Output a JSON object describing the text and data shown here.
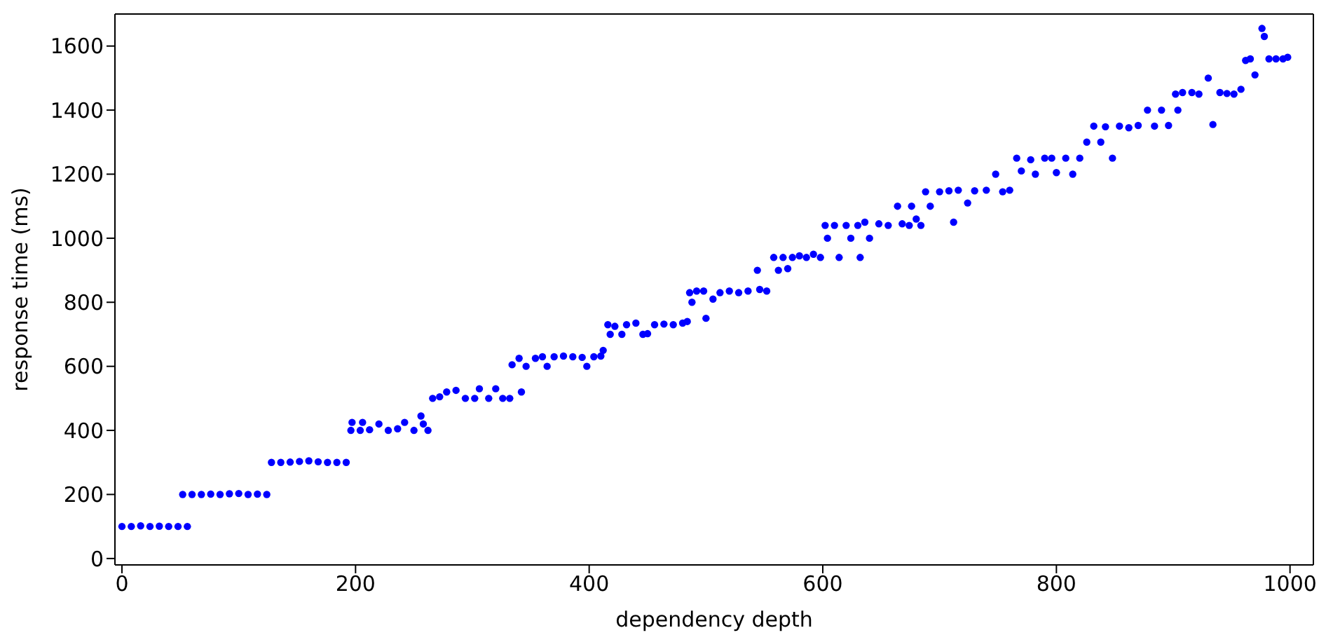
{
  "chart_data": {
    "type": "scatter",
    "xlabel": "dependency depth",
    "ylabel": "response time (ms)",
    "xlim": [
      -6,
      1020
    ],
    "ylim": [
      -20,
      1700
    ],
    "xticks": [
      0,
      200,
      400,
      600,
      800,
      1000
    ],
    "yticks": [
      0,
      200,
      400,
      600,
      800,
      1000,
      1200,
      1400,
      1600
    ],
    "grid": false,
    "legend": false,
    "marker": "circle",
    "series": [
      {
        "color": "#0000ff",
        "x": [
          0,
          8,
          16,
          24,
          32,
          40,
          48,
          52,
          56,
          60,
          68,
          76,
          84,
          92,
          100,
          108,
          116,
          124,
          128,
          136,
          144,
          152,
          160,
          168,
          176,
          184,
          192,
          196,
          197,
          204,
          206,
          212,
          220,
          228,
          236,
          242,
          250,
          256,
          258,
          262,
          266,
          272,
          278,
          286,
          294,
          302,
          306,
          314,
          320,
          326,
          332,
          334,
          340,
          342,
          346,
          354,
          360,
          364,
          370,
          378,
          386,
          394,
          398,
          404,
          410,
          412,
          416,
          418,
          422,
          428,
          432,
          440,
          446,
          450,
          456,
          464,
          472,
          480,
          484,
          486,
          488,
          492,
          498,
          500,
          506,
          512,
          520,
          528,
          536,
          544,
          546,
          552,
          558,
          562,
          566,
          570,
          574,
          580,
          586,
          592,
          598,
          602,
          604,
          610,
          614,
          620,
          624,
          630,
          632,
          636,
          640,
          648,
          656,
          664,
          668,
          674,
          676,
          680,
          684,
          688,
          692,
          700,
          708,
          712,
          716,
          724,
          730,
          740,
          748,
          754,
          760,
          766,
          770,
          778,
          782,
          790,
          796,
          800,
          808,
          814,
          820,
          826,
          832,
          838,
          842,
          848,
          854,
          862,
          870,
          878,
          884,
          890,
          896,
          902,
          904,
          908,
          916,
          922,
          930,
          934,
          940,
          946,
          952,
          958,
          962,
          966,
          970,
          976,
          978,
          982,
          988,
          994,
          998
        ],
        "values": [
          100,
          100,
          102,
          100,
          101,
          100,
          100,
          200,
          100,
          200,
          200,
          201,
          200,
          202,
          203,
          200,
          201,
          200,
          300,
          300,
          301,
          303,
          305,
          302,
          300,
          300,
          300,
          400,
          425,
          400,
          425,
          402,
          420,
          400,
          405,
          425,
          400,
          445,
          420,
          400,
          500,
          505,
          520,
          525,
          500,
          500,
          530,
          500,
          530,
          500,
          500,
          605,
          625,
          520,
          600,
          625,
          630,
          600,
          630,
          632,
          630,
          628,
          600,
          630,
          632,
          650,
          730,
          700,
          725,
          700,
          730,
          735,
          700,
          702,
          730,
          732,
          730,
          735,
          740,
          830,
          800,
          835,
          835,
          750,
          810,
          830,
          835,
          830,
          835,
          900,
          840,
          835,
          940,
          900,
          940,
          905,
          940,
          945,
          940,
          950,
          940,
          1040,
          1000,
          1040,
          940,
          1040,
          1000,
          1040,
          940,
          1050,
          1000,
          1045,
          1040,
          1100,
          1045,
          1040,
          1100,
          1060,
          1040,
          1145,
          1100,
          1145,
          1148,
          1050,
          1150,
          1110,
          1148,
          1150,
          1200,
          1145,
          1150,
          1250,
          1210,
          1245,
          1200,
          1250,
          1250,
          1205,
          1250,
          1200,
          1250,
          1300,
          1350,
          1300,
          1348,
          1250,
          1350,
          1345,
          1352,
          1400,
          1350,
          1400,
          1352,
          1450,
          1400,
          1455,
          1455,
          1450,
          1500,
          1355,
          1455,
          1452,
          1450,
          1465,
          1555,
          1560,
          1510,
          1655,
          1630,
          1560,
          1560,
          1560,
          1565
        ]
      }
    ]
  }
}
